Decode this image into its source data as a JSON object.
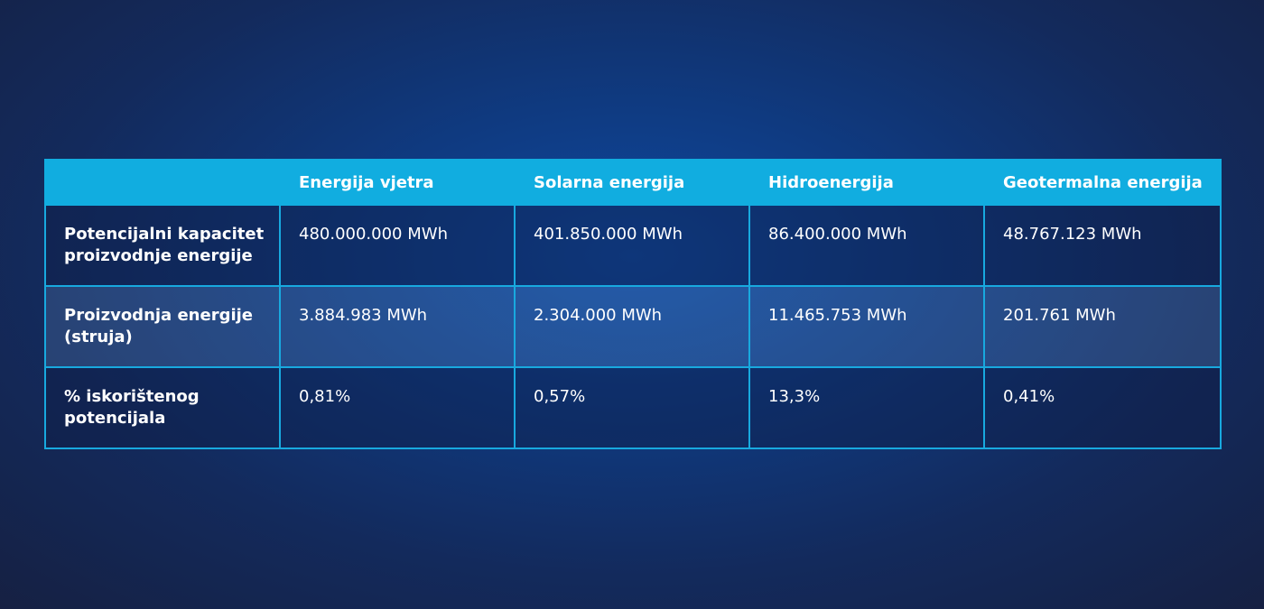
{
  "table": {
    "headers": [
      "",
      "Energija vjetra",
      "Solarna energija",
      "Hidroenergija",
      "Geotermalna energija"
    ],
    "rows": [
      {
        "label": "Potencijalni kapacitet proizvodnje energije",
        "cells": [
          "480.000.000 MWh",
          "401.850.000 MWh",
          "86.400.000 MWh",
          "48.767.123 MWh"
        ]
      },
      {
        "label": "Proizvodnja energije (struja)",
        "cells": [
          "3.884.983 MWh",
          "2.304.000 MWh",
          "11.465.753 MWh",
          "201.761 MWh"
        ]
      },
      {
        "label": "% iskorištenog potencijala",
        "cells": [
          "0,81%",
          "0,57%",
          "13,3%",
          "0,41%"
        ]
      }
    ]
  },
  "colors": {
    "header_bg": "#11ade0",
    "border": "#18a9df",
    "text": "#ffffff",
    "background_center": "#0e49a0",
    "background_edge": "#161f3f"
  }
}
